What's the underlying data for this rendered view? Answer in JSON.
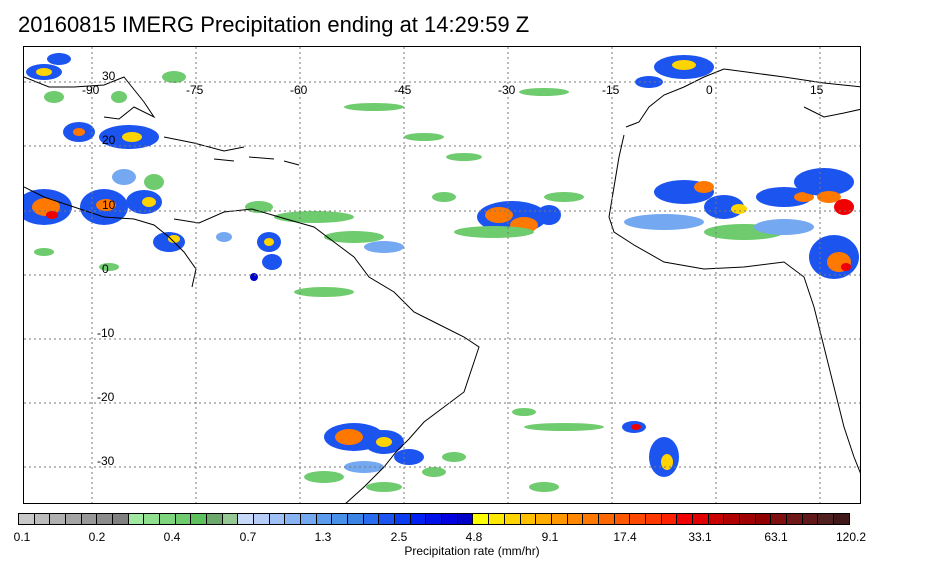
{
  "title": "20160815 IMERG Precipitation ending at 14:29:59 Z",
  "map": {
    "longitude_labels": [
      "-90",
      "-75",
      "-60",
      "-45",
      "-30",
      "-15",
      "0",
      "15"
    ],
    "latitude_labels": [
      "30",
      "20",
      "10",
      "0",
      "-10",
      "-20",
      "-30"
    ],
    "gridlines": true
  },
  "colorbar": {
    "ticks": [
      "0.1",
      "0.2",
      "0.4",
      "0.7",
      "1.3",
      "2.5",
      "4.8",
      "9.1",
      "17.4",
      "33.1",
      "63.1",
      "120.2"
    ],
    "label": "Precipitation rate (mm/hr)",
    "colors": [
      "#c8c8c8",
      "#bcbcbc",
      "#b0b0b0",
      "#a4a4a4",
      "#989898",
      "#8c8c8c",
      "#808080",
      "#a0e8a0",
      "#8fdf8f",
      "#7ed57e",
      "#6ecb6e",
      "#5ec15e",
      "#6ca86c",
      "#96c896",
      "#c8d8f8",
      "#b8ccf8",
      "#a0c0f8",
      "#88b4f4",
      "#74a8f0",
      "#5c9cec",
      "#4890e8",
      "#3c84e4",
      "#2a6cf0",
      "#1c54f0",
      "#0c3cf0",
      "#0020f4",
      "#0010e8",
      "#0000e0",
      "#0000c8",
      "#ffff00",
      "#ffe800",
      "#ffd400",
      "#ffc000",
      "#ffac00",
      "#ff9800",
      "#ff8800",
      "#ff7800",
      "#ff6800",
      "#ff5800",
      "#ff4800",
      "#ff3800",
      "#ff2000",
      "#f00000",
      "#e00000",
      "#c80000",
      "#b00000",
      "#a00000",
      "#900000",
      "#801010",
      "#701818",
      "#601818",
      "#502020",
      "#401818"
    ]
  }
}
